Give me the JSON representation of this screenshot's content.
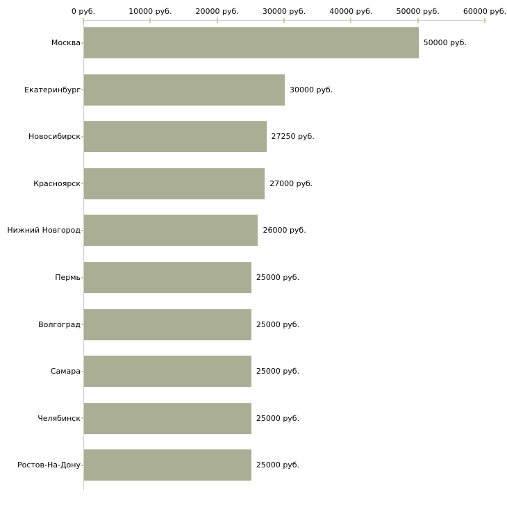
{
  "chart_data": {
    "type": "bar",
    "orientation": "horizontal",
    "title": "",
    "xlabel": "",
    "ylabel": "",
    "categories": [
      "Москва",
      "Екатеринбург",
      "Новосибирск",
      "Красноярск",
      "Нижний Новгород",
      "Пермь",
      "Волгоград",
      "Самара",
      "Челябинск",
      "Ростов-На-Дону"
    ],
    "values": [
      50000,
      30000,
      27250,
      27000,
      26000,
      25000,
      25000,
      25000,
      25000,
      25000
    ],
    "value_labels": [
      "50000 руб.",
      "30000 руб.",
      "27250 руб.",
      "27000 руб.",
      "26000 руб.",
      "25000 руб.",
      "25000 руб.",
      "25000 руб.",
      "25000 руб.",
      "25000 руб."
    ],
    "x_ticks": [
      0,
      10000,
      20000,
      30000,
      40000,
      50000,
      60000
    ],
    "x_tick_labels": [
      "0 руб.",
      "10000 руб.",
      "20000 руб.",
      "30000 руб.",
      "40000 руб.",
      "50000 руб.",
      "60000 руб."
    ],
    "xlim": [
      0,
      60000
    ],
    "grid": false,
    "legend": false,
    "colors": {
      "bar": "#a9ae94",
      "axis_line": "#d2d2d2",
      "tick_mark": "#c9cda9",
      "text": "#000000",
      "background": "#ffffff"
    }
  }
}
